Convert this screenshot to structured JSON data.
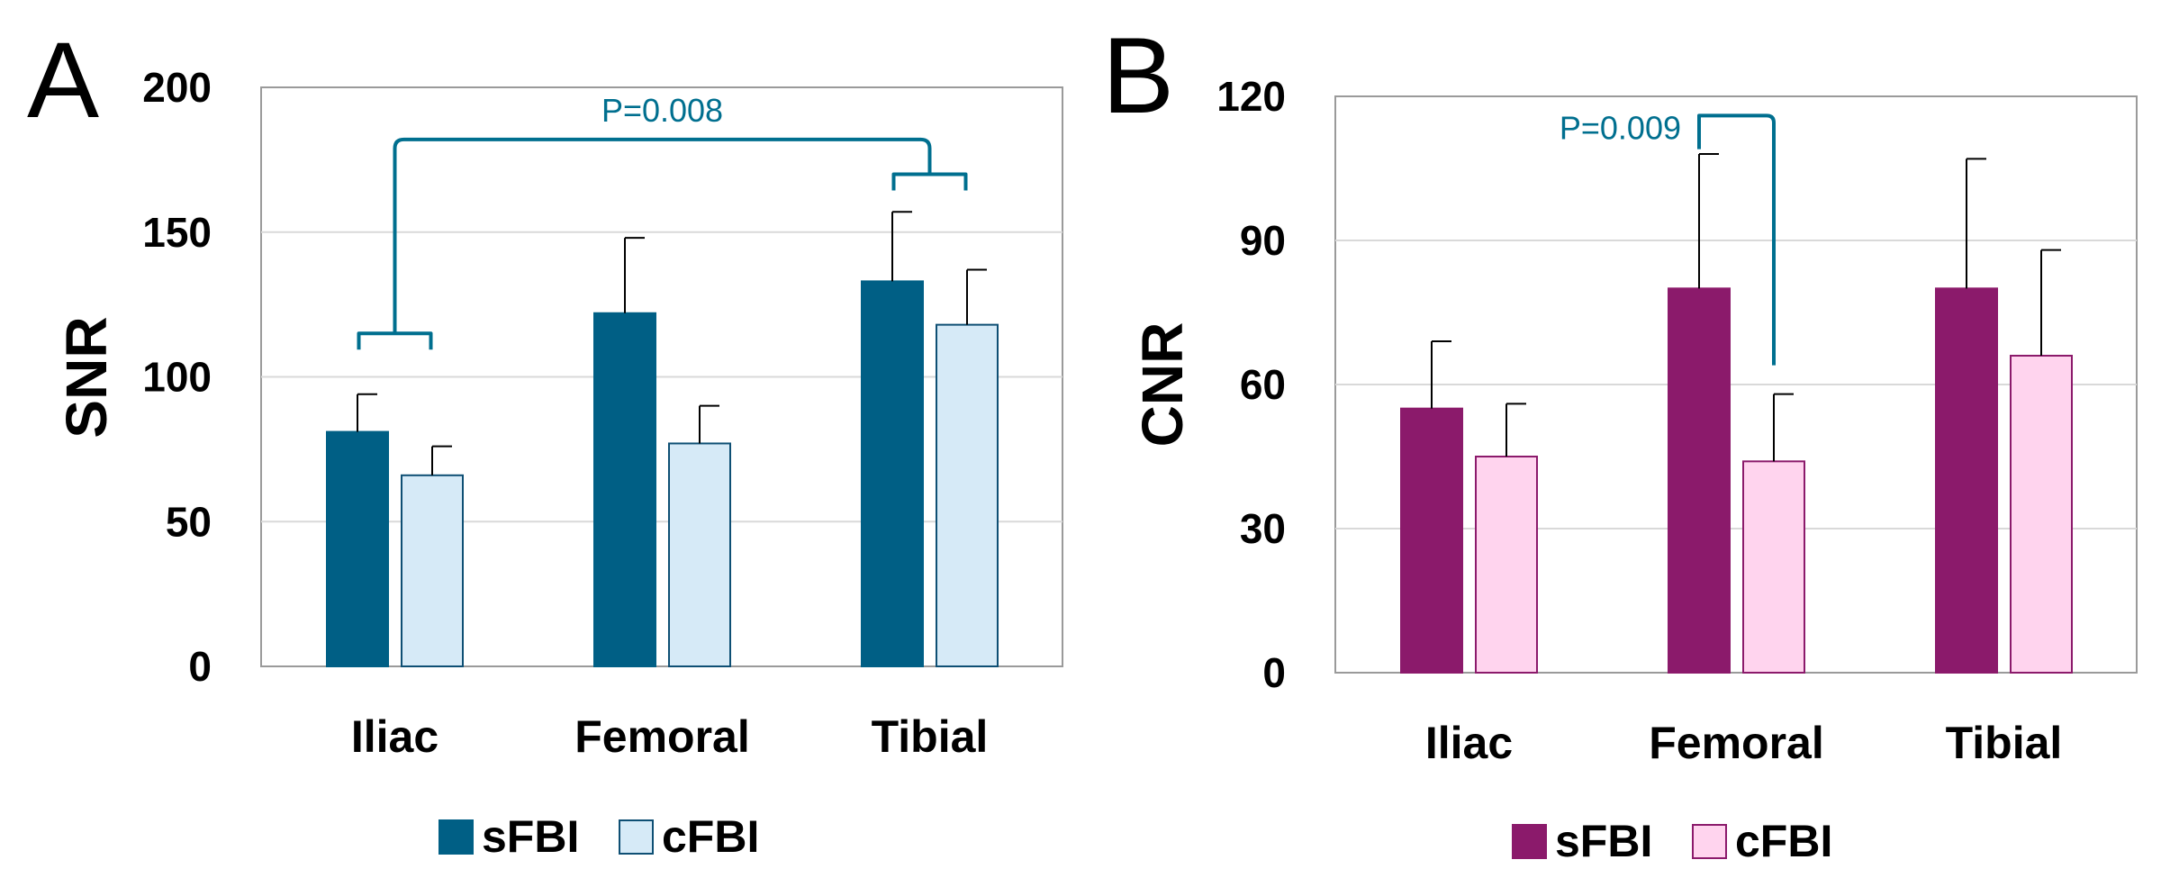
{
  "chart_data": [
    {
      "panel": "A",
      "type": "bar",
      "title": "",
      "xlabel": "",
      "ylabel": "SNR",
      "ylim": [
        0,
        200
      ],
      "yticks": [
        0,
        50,
        100,
        150,
        200
      ],
      "grid": true,
      "categories": [
        "Iliac",
        "Femoral",
        "Tibial"
      ],
      "series": [
        {
          "name": "sFBI",
          "values": [
            81,
            122,
            133
          ],
          "errors": [
            13,
            26,
            24
          ],
          "color": "#005F85",
          "edge": "#005F85"
        },
        {
          "name": "cFBI",
          "values": [
            66,
            77,
            118
          ],
          "errors": [
            10,
            13,
            19
          ],
          "color": "#D6EAF7",
          "edge": "#0E4F74"
        }
      ],
      "annotations": [
        {
          "text": "P=0.008",
          "color": "#006F8F",
          "type": "bracket",
          "from_category": "Iliac",
          "to_category": "Tibial",
          "left_group_y": 115,
          "right_group_y": 170,
          "top_y": 182
        }
      ],
      "legend": "bottom"
    },
    {
      "panel": "B",
      "type": "bar",
      "title": "",
      "xlabel": "",
      "ylabel": "CNR",
      "ylim": [
        0,
        120
      ],
      "yticks": [
        0,
        30,
        60,
        90,
        120
      ],
      "grid": true,
      "categories": [
        "Iliac",
        "Femoral",
        "Tibial"
      ],
      "series": [
        {
          "name": "sFBI",
          "values": [
            55,
            80,
            80
          ],
          "errors": [
            14,
            28,
            27
          ],
          "color": "#8B1A6B",
          "edge": "#8B1A6B"
        },
        {
          "name": "cFBI",
          "values": [
            45,
            44,
            66
          ],
          "errors": [
            11,
            14,
            22
          ],
          "color": "#FFD4EE",
          "edge": "#8B1A6B"
        }
      ],
      "annotations": [
        {
          "text": "P=0.009",
          "color": "#006F8F",
          "type": "bracket",
          "from_series": "sFBI",
          "to_series": "cFBI",
          "category": "Femoral",
          "left_y": 109,
          "right_y": 64,
          "top_y": 116
        }
      ],
      "legend": "bottom"
    }
  ]
}
